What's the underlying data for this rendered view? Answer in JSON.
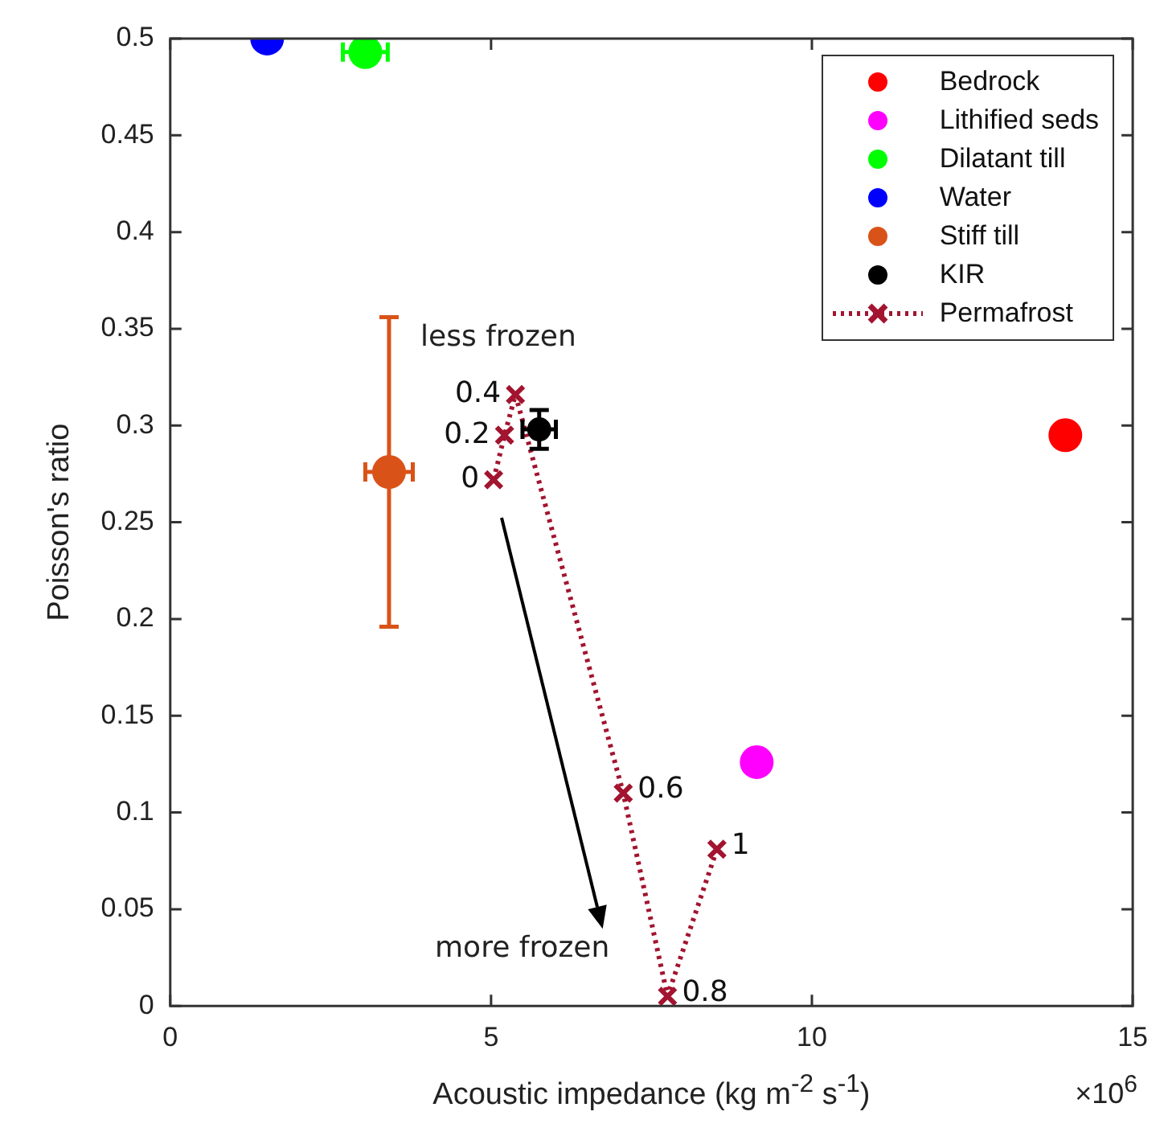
{
  "chart_data": {
    "type": "scatter",
    "xlabel": "Acoustic impedance (kg m$^{-2}$ s$^{-1}$)",
    "ylabel": "Poisson's ratio",
    "xlim": [
      0,
      15
    ],
    "xticks": [
      0,
      5,
      10,
      15
    ],
    "ylim": [
      0,
      0.5
    ],
    "yticks": [
      0,
      0.05,
      0.1,
      0.15,
      0.2,
      0.25,
      0.3,
      0.35,
      0.4,
      0.45,
      0.5
    ],
    "legend": "top right",
    "marker": "circle",
    "series": [
      {
        "name": "Bedrock",
        "color": "#ff0000",
        "x": [
          13.95
        ],
        "values": [
          0.295
        ]
      },
      {
        "name": "Lithified seds",
        "color": "#ff00ff",
        "x": [
          9.14
        ],
        "values": [
          0.126
        ]
      },
      {
        "name": "Dilatant till",
        "color": "#00ff00",
        "x": [
          3.04
        ],
        "values": [
          0.493
        ],
        "xerrors": [
          0.35
        ]
      },
      {
        "name": "Water",
        "color": "#0000ff",
        "x": [
          1.51
        ],
        "values": [
          0.5
        ]
      },
      {
        "name": "Stiff till",
        "color": "#d95319",
        "x": [
          3.41
        ],
        "values": [
          0.276
        ],
        "errors": [
          0.08
        ],
        "xerrors": [
          0.37
        ]
      },
      {
        "name": "KIR",
        "color": "#000000",
        "x": [
          5.75
        ],
        "values": [
          0.298
        ],
        "errors": [
          0.01
        ],
        "xerrors": [
          0.26
        ]
      },
      {
        "name": "Permafrost",
        "type": "line",
        "color": "#a2142f",
        "marker": "cross",
        "line_style": "dotted",
        "x": [
          5.04,
          5.21,
          5.38,
          7.06,
          7.75,
          8.52
        ],
        "values": [
          0.272,
          0.295,
          0.316,
          0.11,
          0.005,
          0.081
        ]
      }
    ],
    "annotations": [
      "less frozen",
      "more frozen",
      "×10$^{6}$",
      {
        "text": "0",
        "x": 5.04,
        "y": 0.272
      },
      {
        "text": "0.2",
        "x": 5.21,
        "y": 0.295
      },
      {
        "text": "0.4",
        "x": 5.38,
        "y": 0.316
      },
      {
        "text": "0.6",
        "x": 7.06,
        "y": 0.11
      },
      {
        "text": "0.8",
        "x": 7.75,
        "y": 0.005
      },
      {
        "text": "1",
        "x": 8.52,
        "y": 0.081
      }
    ]
  }
}
